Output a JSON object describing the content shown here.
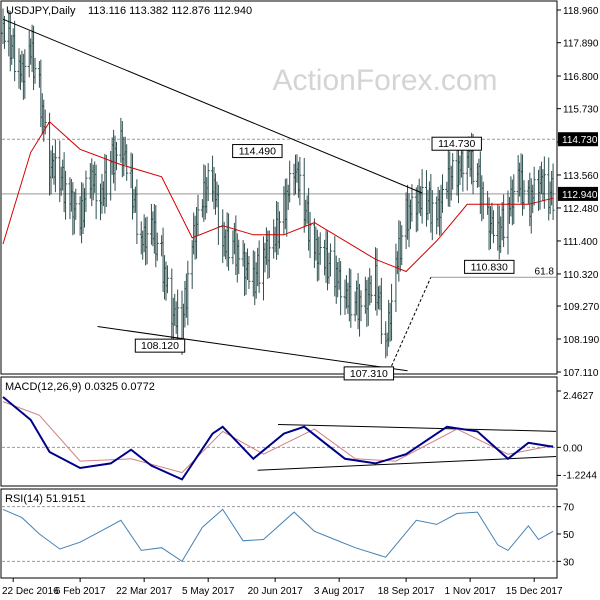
{
  "chart_data": [
    {
      "type": "ohlc",
      "panel": "price",
      "title": "USDJPY,Daily",
      "ohlc_readout": "113.116 113.382 112.876 112.940",
      "watermark": "ActionForex.com",
      "ylim": [
        107.11,
        118.96
      ],
      "yticks": [
        {
          "value": 118.96,
          "label": "118.960"
        },
        {
          "value": 117.89,
          "label": "117.890"
        },
        {
          "value": 116.8,
          "label": "116.800"
        },
        {
          "value": 115.73,
          "label": "115.730"
        },
        {
          "value": 114.64,
          "label": "114.640"
        },
        {
          "value": 113.56,
          "label": "113.560"
        },
        {
          "value": 112.48,
          "label": "112.480"
        },
        {
          "value": 111.4,
          "label": "111.400"
        },
        {
          "value": 110.32,
          "label": "110.320"
        },
        {
          "value": 109.27,
          "label": "109.270"
        },
        {
          "value": 108.19,
          "label": "108.190"
        },
        {
          "value": 107.11,
          "label": "107.110"
        }
      ],
      "last_price": {
        "value": 112.94,
        "label": "112.940"
      },
      "resistance_line": {
        "value": 114.73,
        "label": "114.730"
      },
      "fib_level": {
        "value": 110.21,
        "label": "61.8"
      },
      "annotations": [
        {
          "label": "108.120",
          "date": "2017-04-17",
          "value": 108.12
        },
        {
          "label": "114.490",
          "date": "2017-06-22",
          "value": 114.49
        },
        {
          "label": "107.310",
          "date": "2017-09-08",
          "value": 107.31
        },
        {
          "label": "114.730",
          "date": "2017-11-06",
          "value": 114.73
        },
        {
          "label": "110.830",
          "date": "2017-11-27",
          "value": 110.83
        }
      ],
      "trendlines": [
        {
          "name": "falling resistance",
          "from": {
            "date": "2016-12-15",
            "value": 118.66
          },
          "to": {
            "date": "2017-09-29",
            "value": 112.97
          }
        },
        {
          "name": "support",
          "from": {
            "date": "2017-02-18",
            "value": 108.6
          },
          "to": {
            "date": "2017-09-19",
            "value": 107.15
          }
        },
        {
          "name": "projection",
          "from": {
            "date": "2017-09-08",
            "value": 107.31
          },
          "to": {
            "date": "2017-10-05",
            "value": 110.21
          }
        }
      ],
      "close_series": [
        {
          "date": "2016-12-15",
          "value": 118.2
        },
        {
          "date": "2016-12-21",
          "value": 117.7
        },
        {
          "date": "2016-12-28",
          "value": 116.8
        },
        {
          "date": "2017-01-03",
          "value": 117.6
        },
        {
          "date": "2017-01-09",
          "value": 116.3
        },
        {
          "date": "2017-01-16",
          "value": 113.8
        },
        {
          "date": "2017-01-23",
          "value": 113.5
        },
        {
          "date": "2017-01-30",
          "value": 112.7
        },
        {
          "date": "2017-02-06",
          "value": 112.0
        },
        {
          "date": "2017-02-13",
          "value": 113.6
        },
        {
          "date": "2017-02-20",
          "value": 112.6
        },
        {
          "date": "2017-02-27",
          "value": 113.9
        },
        {
          "date": "2017-03-06",
          "value": 114.6
        },
        {
          "date": "2017-03-13",
          "value": 113.2
        },
        {
          "date": "2017-03-20",
          "value": 111.3
        },
        {
          "date": "2017-03-27",
          "value": 111.8
        },
        {
          "date": "2017-04-03",
          "value": 110.8
        },
        {
          "date": "2017-04-10",
          "value": 109.0
        },
        {
          "date": "2017-04-17",
          "value": 108.5
        },
        {
          "date": "2017-04-24",
          "value": 111.3
        },
        {
          "date": "2017-05-01",
          "value": 112.7
        },
        {
          "date": "2017-05-08",
          "value": 113.5
        },
        {
          "date": "2017-05-15",
          "value": 111.2
        },
        {
          "date": "2017-05-22",
          "value": 111.3
        },
        {
          "date": "2017-05-29",
          "value": 110.6
        },
        {
          "date": "2017-06-05",
          "value": 110.0
        },
        {
          "date": "2017-06-12",
          "value": 110.9
        },
        {
          "date": "2017-06-19",
          "value": 111.3
        },
        {
          "date": "2017-06-26",
          "value": 112.4
        },
        {
          "date": "2017-07-03",
          "value": 113.8
        },
        {
          "date": "2017-07-10",
          "value": 112.5
        },
        {
          "date": "2017-07-17",
          "value": 111.1
        },
        {
          "date": "2017-07-24",
          "value": 110.7
        },
        {
          "date": "2017-07-31",
          "value": 110.4
        },
        {
          "date": "2017-08-07",
          "value": 109.5
        },
        {
          "date": "2017-08-14",
          "value": 109.3
        },
        {
          "date": "2017-08-21",
          "value": 109.4
        },
        {
          "date": "2017-08-28",
          "value": 110.1
        },
        {
          "date": "2017-09-04",
          "value": 107.9
        },
        {
          "date": "2017-09-11",
          "value": 110.5
        },
        {
          "date": "2017-09-18",
          "value": 112.2
        },
        {
          "date": "2017-09-25",
          "value": 112.6
        },
        {
          "date": "2017-10-02",
          "value": 112.7
        },
        {
          "date": "2017-10-09",
          "value": 112.2
        },
        {
          "date": "2017-10-16",
          "value": 113.2
        },
        {
          "date": "2017-10-23",
          "value": 113.7
        },
        {
          "date": "2017-10-30",
          "value": 114.1
        },
        {
          "date": "2017-11-06",
          "value": 113.5
        },
        {
          "date": "2017-11-13",
          "value": 112.1
        },
        {
          "date": "2017-11-20",
          "value": 111.5
        },
        {
          "date": "2017-11-27",
          "value": 112.4
        },
        {
          "date": "2017-12-04",
          "value": 113.4
        },
        {
          "date": "2017-12-11",
          "value": 112.6
        },
        {
          "date": "2017-12-18",
          "value": 113.3
        },
        {
          "date": "2017-12-25",
          "value": 112.9
        }
      ],
      "moving_average": [
        {
          "date": "2016-12-15",
          "value": 111.3
        },
        {
          "date": "2017-01-03",
          "value": 114.3
        },
        {
          "date": "2017-01-16",
          "value": 115.3
        },
        {
          "date": "2017-02-06",
          "value": 114.4
        },
        {
          "date": "2017-03-06",
          "value": 113.9
        },
        {
          "date": "2017-04-03",
          "value": 113.5
        },
        {
          "date": "2017-04-24",
          "value": 111.5
        },
        {
          "date": "2017-05-15",
          "value": 111.9
        },
        {
          "date": "2017-06-05",
          "value": 111.6
        },
        {
          "date": "2017-06-26",
          "value": 111.6
        },
        {
          "date": "2017-07-17",
          "value": 112.0
        },
        {
          "date": "2017-08-07",
          "value": 111.4
        },
        {
          "date": "2017-08-28",
          "value": 110.8
        },
        {
          "date": "2017-09-18",
          "value": 110.4
        },
        {
          "date": "2017-10-09",
          "value": 111.4
        },
        {
          "date": "2017-10-30",
          "value": 112.6
        },
        {
          "date": "2017-11-20",
          "value": 112.6
        },
        {
          "date": "2017-12-11",
          "value": 112.6
        },
        {
          "date": "2017-12-28",
          "value": 112.8
        }
      ]
    },
    {
      "type": "line",
      "panel": "macd",
      "title": "MACD(12,26,9) 0.0325 0.0772",
      "ylim": [
        -1.6,
        2.4627
      ],
      "yticks": [
        {
          "value": 2.4627,
          "label": "2.4627"
        },
        {
          "value": 0.0,
          "label": "0.00"
        },
        {
          "value": -1.2244,
          "label": "-1.2244"
        }
      ],
      "last_value_label": "0.0325",
      "series": [
        {
          "role": "macd",
          "values": [
            {
              "date": "2016-12-15",
              "value": 2.2
            },
            {
              "date": "2017-01-03",
              "value": 1.2
            },
            {
              "date": "2017-01-16",
              "value": -0.2
            },
            {
              "date": "2017-02-06",
              "value": -0.9
            },
            {
              "date": "2017-02-27",
              "value": -0.7
            },
            {
              "date": "2017-03-13",
              "value": -0.1
            },
            {
              "date": "2017-03-27",
              "value": -0.8
            },
            {
              "date": "2017-04-17",
              "value": -1.4
            },
            {
              "date": "2017-05-08",
              "value": 0.6
            },
            {
              "date": "2017-05-15",
              "value": 0.9
            },
            {
              "date": "2017-06-05",
              "value": -0.5
            },
            {
              "date": "2017-06-26",
              "value": 0.6
            },
            {
              "date": "2017-07-10",
              "value": 0.9
            },
            {
              "date": "2017-08-07",
              "value": -0.5
            },
            {
              "date": "2017-08-28",
              "value": -0.7
            },
            {
              "date": "2017-09-18",
              "value": -0.3
            },
            {
              "date": "2017-10-16",
              "value": 0.9
            },
            {
              "date": "2017-11-06",
              "value": 0.7
            },
            {
              "date": "2017-11-27",
              "value": -0.5
            },
            {
              "date": "2017-12-11",
              "value": 0.2
            },
            {
              "date": "2017-12-28",
              "value": 0.03
            }
          ]
        },
        {
          "role": "signal",
          "values": [
            {
              "date": "2016-12-15",
              "value": 2.0
            },
            {
              "date": "2017-01-09",
              "value": 1.4
            },
            {
              "date": "2017-02-06",
              "value": -0.6
            },
            {
              "date": "2017-03-13",
              "value": -0.5
            },
            {
              "date": "2017-04-17",
              "value": -1.1
            },
            {
              "date": "2017-05-15",
              "value": 0.7
            },
            {
              "date": "2017-06-12",
              "value": -0.3
            },
            {
              "date": "2017-07-17",
              "value": 0.8
            },
            {
              "date": "2017-08-14",
              "value": -0.5
            },
            {
              "date": "2017-09-11",
              "value": -0.6
            },
            {
              "date": "2017-10-23",
              "value": 0.8
            },
            {
              "date": "2017-11-27",
              "value": -0.3
            },
            {
              "date": "2017-12-28",
              "value": 0.08
            }
          ]
        }
      ],
      "trendlines": [
        {
          "from": {
            "date": "2017-06-22",
            "value": 1.0
          },
          "to": {
            "date": "2017-12-30",
            "value": 0.7
          }
        },
        {
          "from": {
            "date": "2017-06-08",
            "value": -1.0
          },
          "to": {
            "date": "2017-12-30",
            "value": -0.4
          }
        }
      ]
    },
    {
      "type": "line",
      "panel": "rsi",
      "title": "RSI(14) 51.9151",
      "ylim": [
        20,
        80
      ],
      "yticks": [
        {
          "value": 70,
          "label": "70"
        },
        {
          "value": 50,
          "label": "50"
        },
        {
          "value": 30,
          "label": "30"
        }
      ],
      "last_value_label": "51.9151",
      "values": [
        {
          "date": "2016-12-15",
          "value": 68
        },
        {
          "date": "2016-12-28",
          "value": 62
        },
        {
          "date": "2017-01-09",
          "value": 50
        },
        {
          "date": "2017-01-23",
          "value": 39
        },
        {
          "date": "2017-02-06",
          "value": 44
        },
        {
          "date": "2017-02-20",
          "value": 52
        },
        {
          "date": "2017-03-06",
          "value": 60
        },
        {
          "date": "2017-03-20",
          "value": 38
        },
        {
          "date": "2017-04-03",
          "value": 40
        },
        {
          "date": "2017-04-17",
          "value": 30
        },
        {
          "date": "2017-05-01",
          "value": 55
        },
        {
          "date": "2017-05-15",
          "value": 68
        },
        {
          "date": "2017-05-29",
          "value": 45
        },
        {
          "date": "2017-06-12",
          "value": 46
        },
        {
          "date": "2017-07-03",
          "value": 66
        },
        {
          "date": "2017-07-17",
          "value": 52
        },
        {
          "date": "2017-07-31",
          "value": 46
        },
        {
          "date": "2017-08-14",
          "value": 40
        },
        {
          "date": "2017-09-04",
          "value": 33
        },
        {
          "date": "2017-09-25",
          "value": 60
        },
        {
          "date": "2017-10-09",
          "value": 57
        },
        {
          "date": "2017-10-23",
          "value": 65
        },
        {
          "date": "2017-11-06",
          "value": 66
        },
        {
          "date": "2017-11-20",
          "value": 42
        },
        {
          "date": "2017-11-27",
          "value": 38
        },
        {
          "date": "2017-12-11",
          "value": 56
        },
        {
          "date": "2017-12-18",
          "value": 46
        },
        {
          "date": "2017-12-28",
          "value": 52
        }
      ]
    }
  ],
  "x_axis": {
    "start_date": "2016-12-15",
    "end_date": "2017-12-30",
    "ticks": [
      {
        "date": "2016-12-22",
        "label": "22 Dec 2016"
      },
      {
        "date": "2017-02-06",
        "label": "6 Feb 2017"
      },
      {
        "date": "2017-03-22",
        "label": "22 Mar 2017"
      },
      {
        "date": "2017-05-05",
        "label": "5 May 2017"
      },
      {
        "date": "2017-06-20",
        "label": "20 Jun 2017"
      },
      {
        "date": "2017-08-03",
        "label": "3 Aug 2017"
      },
      {
        "date": "2017-09-18",
        "label": "18 Sep 2017"
      },
      {
        "date": "2017-11-01",
        "label": "1 Nov 2017"
      },
      {
        "date": "2017-12-15",
        "label": "15 Dec 2017"
      }
    ]
  },
  "colors": {
    "bars": "#2f4f4f",
    "moving_average": "#d40000",
    "macd_line": "#00008b",
    "signal_line": "#d08080",
    "rsi_line": "#4682b4",
    "trendline": "#000000",
    "grid_level": "#999999",
    "label_background": "#ffffff",
    "price_badge": "#000000"
  }
}
